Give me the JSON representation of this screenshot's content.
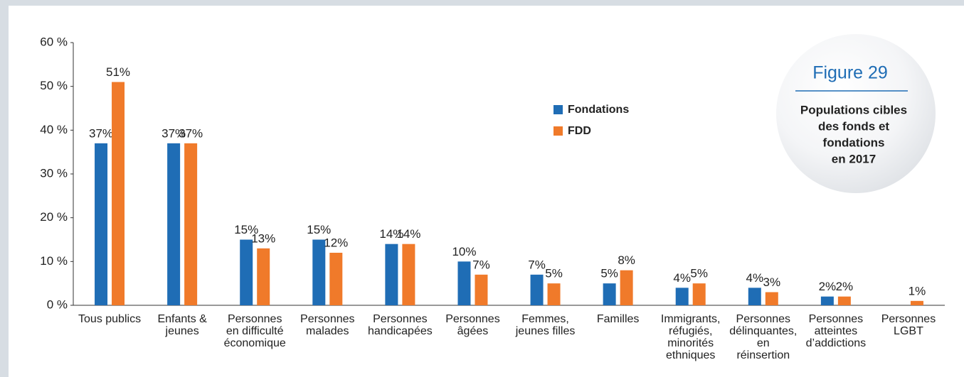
{
  "chart_data": {
    "type": "bar",
    "badge_title": "Figure 29",
    "badge_text": [
      "Populations cibles",
      "des fonds et",
      "fondations",
      "en 2017"
    ],
    "categories": [
      [
        "Tous publics"
      ],
      [
        "Enfants &",
        "jeunes"
      ],
      [
        "Personnes",
        "en difficulté",
        "économique"
      ],
      [
        "Personnes",
        "malades"
      ],
      [
        "Personnes",
        "handicapées"
      ],
      [
        "Personnes",
        "âgées"
      ],
      [
        "Femmes,",
        "jeunes filles"
      ],
      [
        "Familles"
      ],
      [
        "Immigrants,",
        "réfugiés,",
        "minorités",
        "ethniques"
      ],
      [
        "Personnes",
        "délinquantes,",
        "en",
        "réinsertion"
      ],
      [
        "Personnes",
        "atteintes",
        "d’addictions"
      ],
      [
        "Personnes",
        "LGBT"
      ]
    ],
    "series": [
      {
        "name": "Fondations",
        "color": "#1f6db5",
        "values": [
          37,
          37,
          15,
          15,
          14,
          10,
          7,
          5,
          4,
          4,
          2,
          null
        ],
        "value_labels": [
          "37%",
          "37%",
          "15%",
          "15%",
          "14%",
          "10%",
          "7%",
          "5%",
          "4%",
          "4%",
          "2%",
          null
        ]
      },
      {
        "name": "FDD",
        "color": "#f07a2a",
        "values": [
          51,
          37,
          13,
          12,
          14,
          7,
          5,
          8,
          5,
          3,
          2,
          1
        ],
        "value_labels": [
          "51%",
          "37%",
          "13%",
          "12%",
          "14%",
          "7%",
          "5%",
          "8%",
          "5%",
          "3%",
          "2%",
          "1%"
        ]
      }
    ],
    "ylim": [
      0,
      60
    ],
    "yticks": [
      {
        "value": 0,
        "label": "0 %"
      },
      {
        "value": 10,
        "label": "10 %"
      },
      {
        "value": 20,
        "label": "20 %"
      },
      {
        "value": 30,
        "label": "30 %"
      },
      {
        "value": 40,
        "label": "40 %"
      },
      {
        "value": 50,
        "label": "50 %"
      },
      {
        "value": 60,
        "label": "60 %"
      }
    ],
    "grid": false
  }
}
